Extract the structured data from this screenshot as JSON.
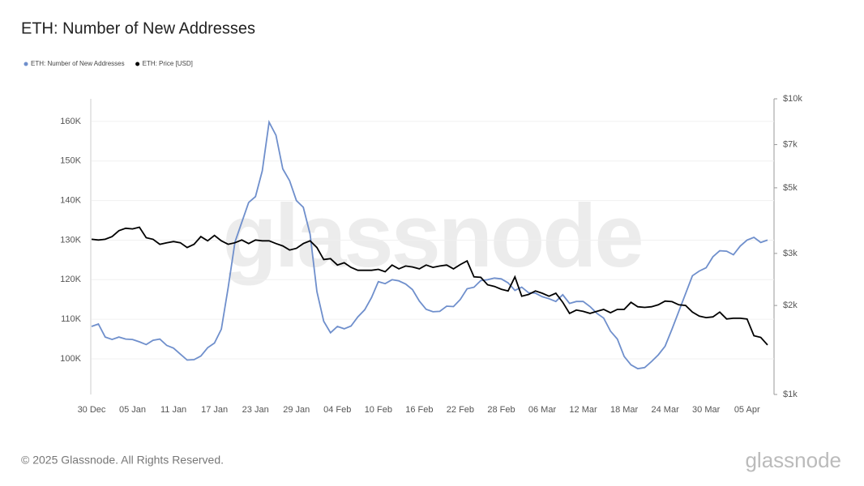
{
  "chart_data": {
    "type": "line",
    "title": "ETH: Number of New Addresses",
    "footer": "© 2025 Glassnode. All Rights Reserved.",
    "watermark": "glassnode",
    "logo": "glassnode",
    "categories": [
      "30 Dec",
      null,
      null,
      null,
      null,
      null,
      "05 Jan",
      null,
      null,
      null,
      null,
      null,
      "11 Jan",
      null,
      null,
      null,
      null,
      null,
      "17 Jan",
      null,
      null,
      null,
      null,
      null,
      "23 Jan",
      null,
      null,
      null,
      null,
      null,
      "29 Jan",
      null,
      null,
      null,
      null,
      null,
      "04 Feb",
      null,
      null,
      null,
      null,
      null,
      "10 Feb",
      null,
      null,
      null,
      null,
      null,
      "16 Feb",
      null,
      null,
      null,
      null,
      null,
      "22 Feb",
      null,
      null,
      null,
      null,
      null,
      "28 Feb",
      null,
      null,
      null,
      null,
      null,
      "06 Mar",
      null,
      null,
      null,
      null,
      null,
      "12 Mar",
      null,
      null,
      null,
      null,
      null,
      "18 Mar",
      null,
      null,
      null,
      null,
      null,
      "24 Mar",
      null,
      null,
      null,
      null,
      null,
      "30 Mar",
      null,
      null,
      null,
      null,
      null,
      "05 Apr",
      null,
      null,
      null
    ],
    "series": [
      {
        "name": "ETH: Number of New Addresses",
        "color": "#6f8fcc",
        "axis": "y",
        "values": [
          108200,
          108800,
          105500,
          104900,
          105500,
          105000,
          104900,
          104300,
          103600,
          104700,
          105000,
          103400,
          102700,
          101200,
          99700,
          99800,
          100700,
          102800,
          104000,
          107500,
          118000,
          129500,
          134500,
          139500,
          141000,
          147500,
          159800,
          156500,
          148000,
          145000,
          140000,
          138300,
          131500,
          117000,
          109500,
          106600,
          108200,
          107600,
          108300,
          110600,
          112400,
          115500,
          119500,
          119000,
          120000,
          119700,
          118900,
          117500,
          114600,
          112500,
          111900,
          112000,
          113300,
          113200,
          115000,
          117700,
          118100,
          119800,
          120000,
          120400,
          120200,
          119200,
          117300,
          118100,
          116700,
          116600,
          115700,
          115200,
          114500,
          116200,
          114000,
          114500,
          114500,
          113200,
          111500,
          110300,
          107000,
          105000,
          100600,
          98500,
          97500,
          97800,
          99300,
          101000,
          103200,
          107500,
          112000,
          116500,
          121000,
          122200,
          123000,
          125800,
          127300,
          127200,
          126300,
          128500,
          130000,
          130700,
          129400,
          130000
        ]
      },
      {
        "name": "ETH: Price [USD]",
        "color": "#000000",
        "axis": "y2",
        "values": [
          3350,
          3330,
          3350,
          3420,
          3580,
          3650,
          3630,
          3680,
          3390,
          3350,
          3220,
          3260,
          3290,
          3260,
          3140,
          3220,
          3420,
          3310,
          3450,
          3310,
          3220,
          3260,
          3330,
          3240,
          3330,
          3310,
          3310,
          3240,
          3180,
          3080,
          3120,
          3240,
          3310,
          3140,
          2860,
          2880,
          2740,
          2790,
          2690,
          2630,
          2630,
          2630,
          2650,
          2600,
          2740,
          2660,
          2720,
          2700,
          2660,
          2740,
          2690,
          2720,
          2740,
          2660,
          2750,
          2830,
          2500,
          2490,
          2350,
          2320,
          2270,
          2240,
          2500,
          2150,
          2180,
          2240,
          2200,
          2150,
          2200,
          2050,
          1880,
          1930,
          1910,
          1880,
          1910,
          1940,
          1890,
          1940,
          1940,
          2050,
          1980,
          1970,
          1980,
          2010,
          2070,
          2060,
          2010,
          2000,
          1900,
          1840,
          1820,
          1830,
          1900,
          1800,
          1810,
          1810,
          1800,
          1580,
          1560,
          1470
        ]
      }
    ],
    "ylim": [
      91000,
      165700
    ],
    "yticks": [
      {
        "value": 100000,
        "label": "100K"
      },
      {
        "value": 110000,
        "label": "110K"
      },
      {
        "value": 120000,
        "label": "120K"
      },
      {
        "value": 130000,
        "label": "130K"
      },
      {
        "value": 140000,
        "label": "140K"
      },
      {
        "value": 150000,
        "label": "150K"
      },
      {
        "value": 160000,
        "label": "160K"
      }
    ],
    "y2lim": [
      1000,
      10000
    ],
    "y2log": true,
    "y2ticks": [
      {
        "value": 1000,
        "label": "$1k"
      },
      {
        "value": 2000,
        "label": "$2k"
      },
      {
        "value": 3000,
        "label": "$3k"
      },
      {
        "value": 5000,
        "label": "$5k"
      },
      {
        "value": 7000,
        "label": "$7k"
      },
      {
        "value": 10000,
        "label": "$10k"
      }
    ],
    "grid": true,
    "legend": "top-left"
  }
}
